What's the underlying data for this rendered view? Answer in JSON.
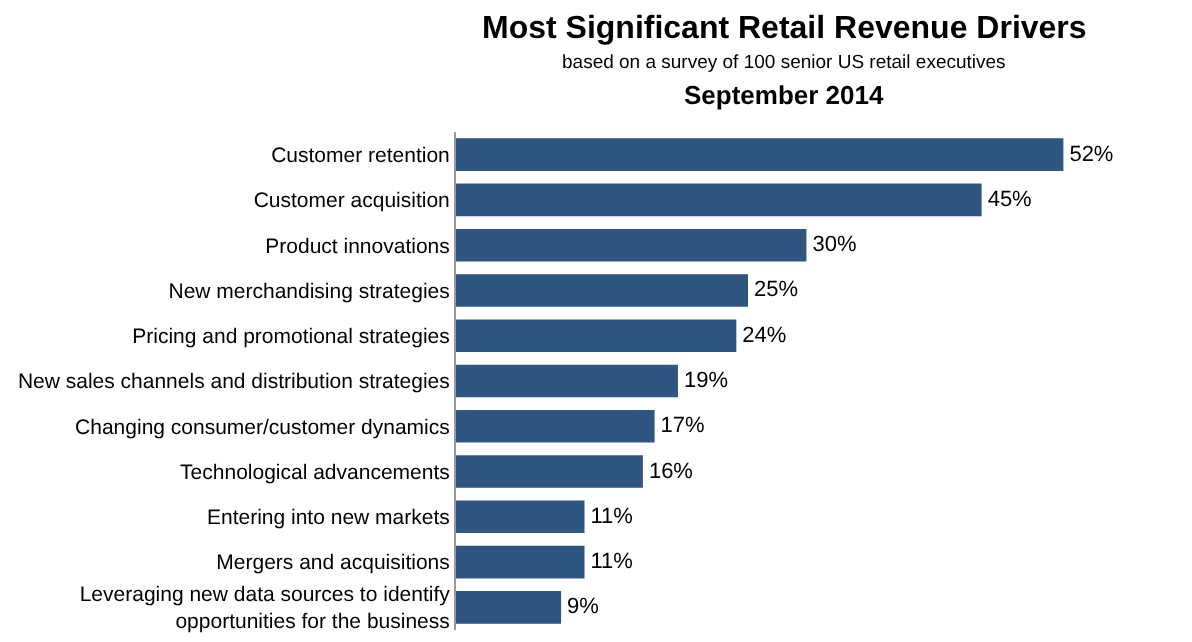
{
  "chart_data": {
    "type": "bar",
    "orientation": "horizontal",
    "title": "Most Significant Retail Revenue Drivers",
    "subtitle": "based on a survey of 100 senior US retail executives",
    "annotations": [
      "September 2014"
    ],
    "categories": [
      "Customer retention",
      "Customer acquisition",
      "Product innovations",
      "New merchandising strategies",
      "Pricing and promotional strategies",
      "New sales channels and distribution strategies",
      "Changing consumer/customer dynamics",
      "Technological advancements",
      "Entering into new markets",
      "Mergers and acquisitions",
      "Leveraging new data sources to identify\nopportunities for the business"
    ],
    "values": [
      52,
      45,
      30,
      25,
      24,
      19,
      17,
      16,
      11,
      11,
      9
    ],
    "value_labels": [
      "52%",
      "45%",
      "30%",
      "25%",
      "24%",
      "19%",
      "17%",
      "16%",
      "11%",
      "11%",
      "9%"
    ],
    "color": "#2f5581",
    "grid": false,
    "legend": false,
    "tick_labels": "y"
  }
}
